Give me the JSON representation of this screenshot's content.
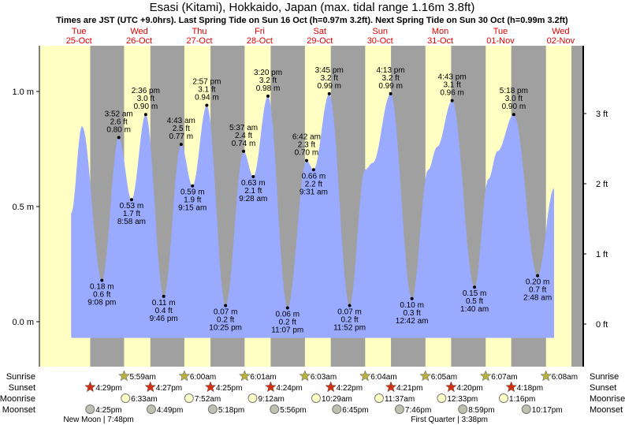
{
  "chart_data": {
    "type": "area",
    "title": "Esasi (Kitami), Hokkaido, Japan (max. tidal range 1.16m 3.8ft)",
    "subtitle": "Times are JST (UTC +9.0hrs). Last Spring Tide on Sun 16 Oct (h=0.97m 3.2ft). Next Spring Tide on Sun 30 Oct (h=0.99m 3.2ft)",
    "days": [
      {
        "name": "Tue",
        "date": "25-Oct"
      },
      {
        "name": "Wed",
        "date": "26-Oct"
      },
      {
        "name": "Thu",
        "date": "27-Oct"
      },
      {
        "name": "Fri",
        "date": "28-Oct"
      },
      {
        "name": "Sat",
        "date": "29-Oct"
      },
      {
        "name": "Sun",
        "date": "30-Oct"
      },
      {
        "name": "Mon",
        "date": "31-Oct"
      },
      {
        "name": "Tue",
        "date": "01-Nov"
      },
      {
        "name": "Wed",
        "date": "02-Nov"
      }
    ],
    "y_left": {
      "ticks": [
        {
          "v": 1.0,
          "label": "1.0 m"
        },
        {
          "v": 0.5,
          "label": "0.5 m"
        },
        {
          "v": 0.0,
          "label": "0.0 m"
        }
      ],
      "range": [
        -0.2,
        1.2
      ]
    },
    "y_right": {
      "ticks": [
        {
          "v": 3,
          "label": "3 ft"
        },
        {
          "v": 2,
          "label": "2 ft"
        },
        {
          "v": 1,
          "label": "1 ft"
        },
        {
          "v": 0,
          "label": "0 ft"
        }
      ]
    },
    "extremes": [
      {
        "day": 0,
        "time": "9:08 pm",
        "m": "0.18 m",
        "ft": "0.6 ft",
        "h": 0.18,
        "type": "low"
      },
      {
        "day": 1,
        "time": "3:52 am",
        "m": "0.80 m",
        "ft": "2.6 ft",
        "h": 0.8,
        "type": "high"
      },
      {
        "day": 1,
        "time": "8:58 am",
        "m": "0.53 m",
        "ft": "1.7 ft",
        "h": 0.53,
        "type": "low"
      },
      {
        "day": 1,
        "time": "2:36 pm",
        "m": "0.90 m",
        "ft": "3.0 ft",
        "h": 0.9,
        "type": "high"
      },
      {
        "day": 1,
        "time": "9:46 pm",
        "m": "0.11 m",
        "ft": "0.4 ft",
        "h": 0.11,
        "type": "low"
      },
      {
        "day": 2,
        "time": "4:43 am",
        "m": "0.77 m",
        "ft": "2.5 ft",
        "h": 0.77,
        "type": "high"
      },
      {
        "day": 2,
        "time": "9:15 am",
        "m": "0.59 m",
        "ft": "1.9 ft",
        "h": 0.59,
        "type": "low"
      },
      {
        "day": 2,
        "time": "2:57 pm",
        "m": "0.94 m",
        "ft": "3.1 ft",
        "h": 0.94,
        "type": "high"
      },
      {
        "day": 2,
        "time": "10:25 pm",
        "m": "0.07 m",
        "ft": "0.2 ft",
        "h": 0.07,
        "type": "low"
      },
      {
        "day": 3,
        "time": "5:37 am",
        "m": "0.74 m",
        "ft": "2.4 ft",
        "h": 0.74,
        "type": "high"
      },
      {
        "day": 3,
        "time": "9:28 am",
        "m": "0.63 m",
        "ft": "2.1 ft",
        "h": 0.63,
        "type": "low"
      },
      {
        "day": 3,
        "time": "3:20 pm",
        "m": "0.98 m",
        "ft": "3.2 ft",
        "h": 0.98,
        "type": "high"
      },
      {
        "day": 3,
        "time": "11:07 pm",
        "m": "0.06 m",
        "ft": "0.2 ft",
        "h": 0.06,
        "type": "low"
      },
      {
        "day": 4,
        "time": "6:42 am",
        "m": "0.70 m",
        "ft": "2.3 ft",
        "h": 0.7,
        "type": "high"
      },
      {
        "day": 4,
        "time": "9:31 am",
        "m": "0.66 m",
        "ft": "2.2 ft",
        "h": 0.66,
        "type": "low"
      },
      {
        "day": 4,
        "time": "3:45 pm",
        "m": "0.99 m",
        "ft": "3.2 ft",
        "h": 0.99,
        "type": "high"
      },
      {
        "day": 4,
        "time": "11:52 pm",
        "m": "0.07 m",
        "ft": "0.2 ft",
        "h": 0.07,
        "type": "low"
      },
      {
        "day": 5,
        "time": "4:13 pm",
        "m": "0.99 m",
        "ft": "3.2 ft",
        "h": 0.99,
        "type": "high"
      },
      {
        "day": 6,
        "time": "12:42 am",
        "m": "0.10 m",
        "ft": "0.3 ft",
        "h": 0.1,
        "type": "low"
      },
      {
        "day": 6,
        "time": "4:43 pm",
        "m": "0.96 m",
        "ft": "3.1 ft",
        "h": 0.96,
        "type": "high"
      },
      {
        "day": 7,
        "time": "1:40 am",
        "m": "0.15 m",
        "ft": "0.5 ft",
        "h": 0.15,
        "type": "low"
      },
      {
        "day": 7,
        "time": "5:18 pm",
        "m": "0.90 m",
        "ft": "3.0 ft",
        "h": 0.9,
        "type": "high"
      },
      {
        "day": 8,
        "time": "2:48 am",
        "m": "0.20 m",
        "ft": "0.7 ft",
        "h": 0.2,
        "type": "low"
      }
    ]
  },
  "rows": {
    "sunrise": "Sunrise",
    "sunset": "Sunset",
    "moonrise": "Moonrise",
    "moonset": "Moonset"
  },
  "sunrise": [
    {
      "day": 1,
      "time": "5:59am"
    },
    {
      "day": 2,
      "time": "6:00am"
    },
    {
      "day": 3,
      "time": "6:01am"
    },
    {
      "day": 4,
      "time": "6:03am"
    },
    {
      "day": 5,
      "time": "6:04am"
    },
    {
      "day": 6,
      "time": "6:05am"
    },
    {
      "day": 7,
      "time": "6:07am"
    },
    {
      "day": 8,
      "time": "6:08am"
    }
  ],
  "sunset": [
    {
      "day": 0,
      "time": "4:29pm"
    },
    {
      "day": 1,
      "time": "4:27pm"
    },
    {
      "day": 2,
      "time": "4:25pm"
    },
    {
      "day": 3,
      "time": "4:24pm"
    },
    {
      "day": 4,
      "time": "4:22pm"
    },
    {
      "day": 5,
      "time": "4:21pm"
    },
    {
      "day": 6,
      "time": "4:20pm"
    },
    {
      "day": 7,
      "time": "4:18pm"
    }
  ],
  "moonrise": [
    {
      "day": 1,
      "time": "6:33am"
    },
    {
      "day": 2,
      "time": "7:52am"
    },
    {
      "day": 3,
      "time": "9:12am"
    },
    {
      "day": 4,
      "time": "10:29am"
    },
    {
      "day": 5,
      "time": "11:37am"
    },
    {
      "day": 6,
      "time": "12:33pm"
    },
    {
      "day": 7,
      "time": "1:16pm"
    }
  ],
  "moonset": [
    {
      "day": 0,
      "time": "4:25pm"
    },
    {
      "day": 1,
      "time": "4:49pm"
    },
    {
      "day": 2,
      "time": "5:18pm"
    },
    {
      "day": 3,
      "time": "5:56pm"
    },
    {
      "day": 4,
      "time": "6:45pm"
    },
    {
      "day": 5,
      "time": "7:46pm"
    },
    {
      "day": 6,
      "time": "8:59pm"
    },
    {
      "day": 7,
      "time": "10:17pm"
    }
  ],
  "phases": [
    {
      "day": 0,
      "label": "New Moon | 7:48pm",
      "time": "7:48pm"
    },
    {
      "day": 6,
      "label": "First Quarter | 3:38pm",
      "time": "3:38pm"
    }
  ],
  "colors": {
    "day": "#ffffc4",
    "night": "#a0a0a0",
    "water": "#99aaff",
    "sunrise": "#b8b040",
    "sunset": "#d03010",
    "moonrise": "#ffffc8",
    "moonset": "#c0c0b0",
    "dayname": "#e00000"
  }
}
